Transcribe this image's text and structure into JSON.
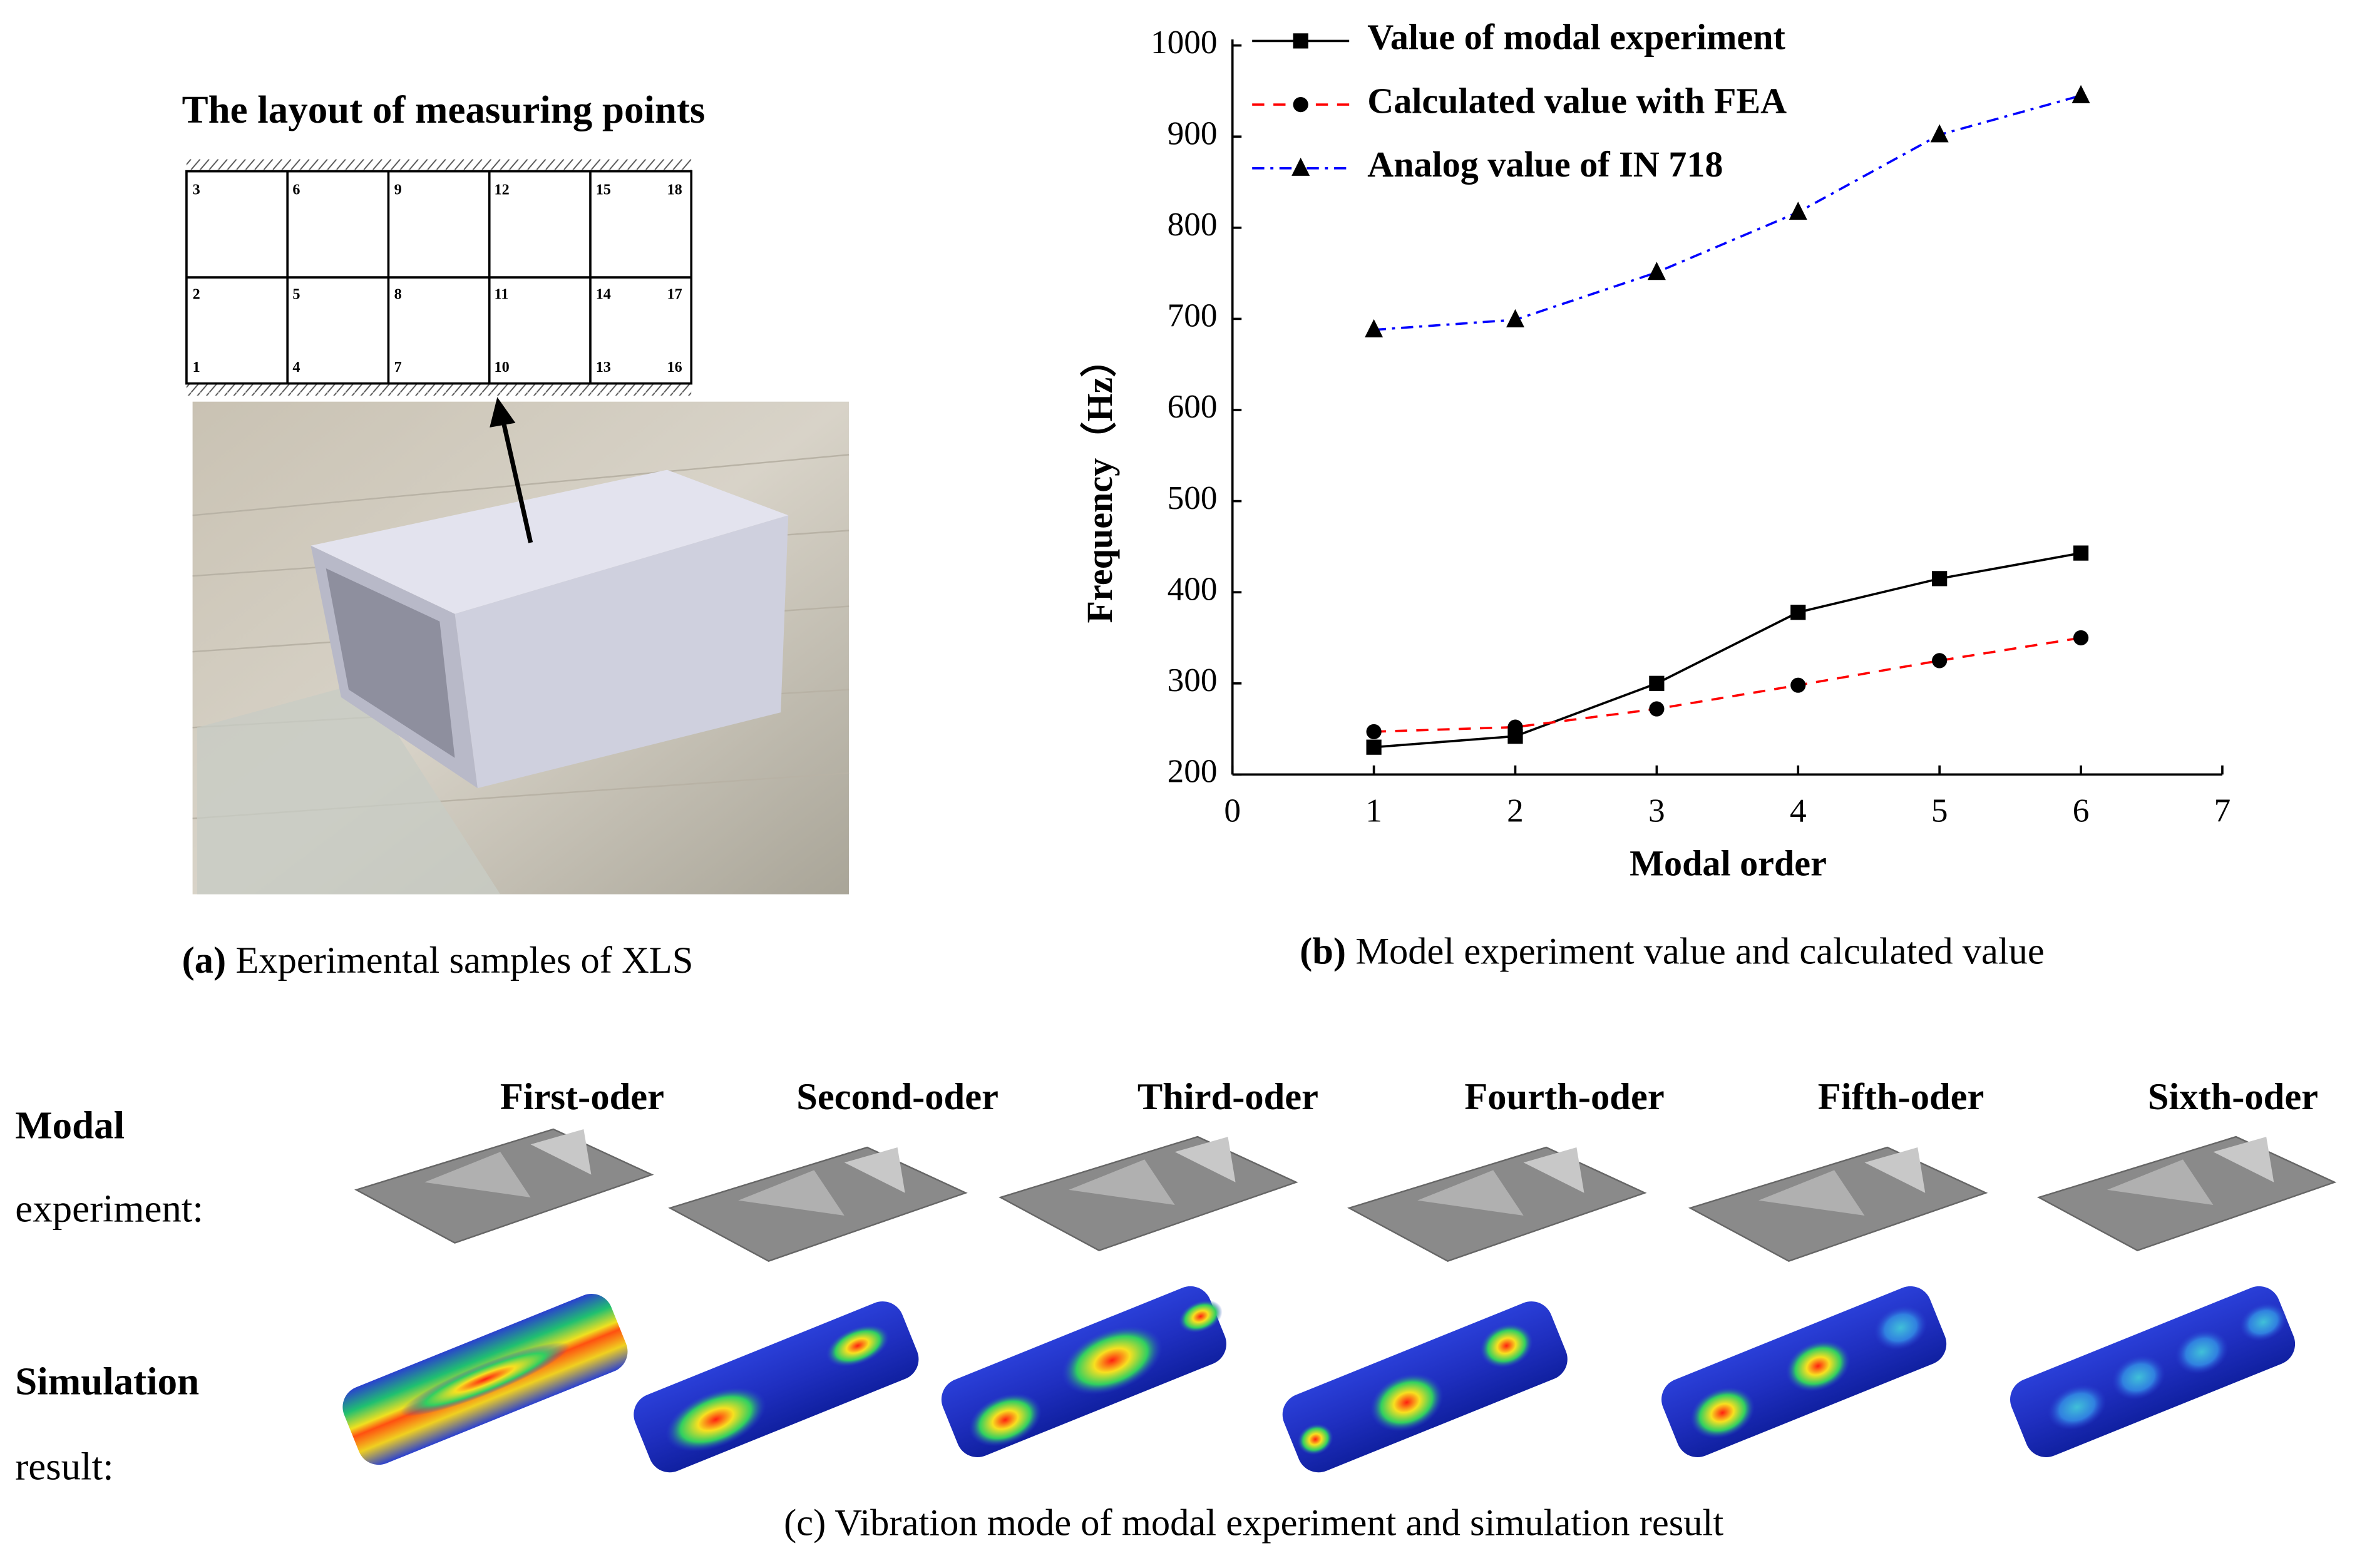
{
  "panel_a": {
    "title": "The layout of measuring points",
    "points": [
      "3",
      "6",
      "9",
      "12",
      "15",
      "18",
      "2",
      "5",
      "8",
      "11",
      "14",
      "17",
      "1",
      "4",
      "7",
      "10",
      "13",
      "16"
    ],
    "caption_label": "(a)",
    "caption": "Experimental samples of XLS"
  },
  "chart_data": {
    "type": "line",
    "x": [
      1,
      2,
      3,
      4,
      5,
      6
    ],
    "series": [
      {
        "name": "Value of modal experiment",
        "color": "#000000",
        "marker": "square",
        "dash": "solid",
        "values": [
          230,
          242,
          300,
          378,
          415,
          443
        ]
      },
      {
        "name": "Calculated value with FEA",
        "color": "#ff0000",
        "marker": "circle",
        "dash": "dashed",
        "values": [
          247,
          252,
          272,
          298,
          325,
          350
        ]
      },
      {
        "name": "Analog value of IN 718",
        "color": "#0000ff",
        "marker": "triangle",
        "dash": "dashdot",
        "values": [
          688,
          699,
          751,
          817,
          902,
          945
        ]
      }
    ],
    "xlim": [
      0,
      7
    ],
    "xticks": [
      0,
      1,
      2,
      3,
      4,
      5,
      6,
      7
    ],
    "ylim": [
      200,
      1000
    ],
    "yticks": [
      200,
      300,
      400,
      500,
      600,
      700,
      800,
      900,
      1000
    ],
    "xlabel": "Modal order",
    "ylabel": "Frequency（Hz）",
    "legend": "upper left",
    "grid": false
  },
  "caption_b": {
    "label": "(b)",
    "text": "Model experiment value and calculated value"
  },
  "panel_c": {
    "modes": [
      "First-oder",
      "Second-oder",
      "Third-oder",
      "Fourth-oder",
      "Fifth-oder",
      "Sixth-oder"
    ],
    "row1": [
      "Modal",
      "experiment:"
    ],
    "row2": [
      "Simulation",
      "result:"
    ],
    "caption": "(c) Vibration mode of modal experiment and simulation result"
  }
}
